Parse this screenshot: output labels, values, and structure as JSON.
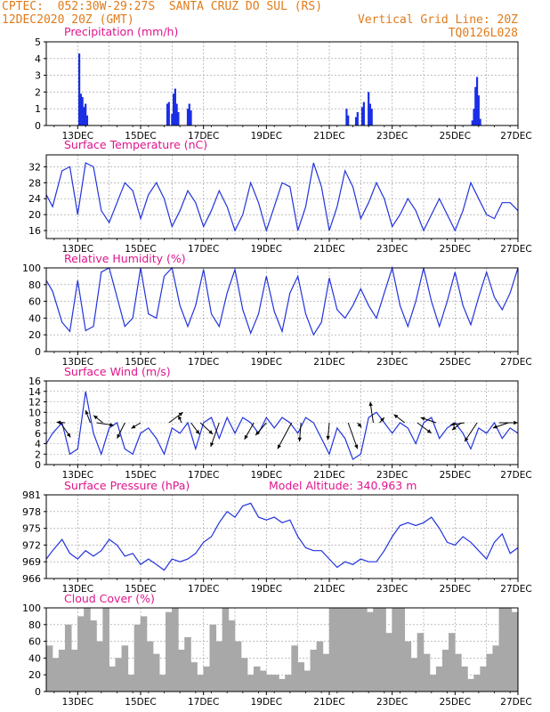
{
  "header": {
    "line1": "CPTEC:  052:30W-29:27S  SANTA CRUZ DO SUL (RS)",
    "line2_left": "12DEC2020 20Z (GMT)",
    "line2_right": "Vertical Grid Line: 20Z",
    "line3_right": "TQ0126L028"
  },
  "colors": {
    "header": "#e07b1a",
    "panel_title": "#e0148c",
    "line": "#2233dd",
    "bar": "#1a2ee6",
    "cloud": "#a8a8a8",
    "grid": "#999999"
  },
  "x_ticks": [
    "13DEC",
    "15DEC",
    "17DEC",
    "19DEC",
    "21DEC",
    "23DEC",
    "25DEC",
    "27DEC"
  ],
  "chart_data": [
    {
      "type": "bar",
      "title": "Precipitation  (mm/h)",
      "ylim": [
        0,
        5
      ],
      "yticks": [
        "0",
        "1",
        "2",
        "3",
        "4",
        "5"
      ],
      "x": [
        13.05,
        13.1,
        13.15,
        13.2,
        13.25,
        13.3,
        15.85,
        15.9,
        16.0,
        16.05,
        16.1,
        16.15,
        16.2,
        16.5,
        16.55,
        16.6,
        21.55,
        21.6,
        21.85,
        21.9,
        22.05,
        22.1,
        22.25,
        22.3,
        22.35,
        25.55,
        25.6,
        25.65,
        25.7,
        25.75,
        25.8
      ],
      "values": [
        4.3,
        1.9,
        1.7,
        1.1,
        1.3,
        0.6,
        1.3,
        1.4,
        0.7,
        1.9,
        2.2,
        1.3,
        0.8,
        1.0,
        1.3,
        0.9,
        1.0,
        0.6,
        0.5,
        0.8,
        1.1,
        1.4,
        2.0,
        1.3,
        1.0,
        0.3,
        1.0,
        2.3,
        2.9,
        1.8,
        0.4
      ]
    },
    {
      "type": "line",
      "title": "Surface Temperature  (nC)",
      "ylim": [
        14,
        35
      ],
      "yticks": [
        "16",
        "20",
        "24",
        "28",
        "32"
      ],
      "x": [
        12.0,
        12.2,
        12.5,
        12.75,
        13.0,
        13.25,
        13.5,
        13.75,
        14.0,
        14.25,
        14.5,
        14.75,
        15.0,
        15.25,
        15.5,
        15.75,
        16.0,
        16.25,
        16.5,
        16.75,
        17.0,
        17.25,
        17.5,
        17.75,
        18.0,
        18.25,
        18.5,
        18.75,
        19.0,
        19.25,
        19.5,
        19.75,
        20.0,
        20.25,
        20.5,
        20.75,
        21.0,
        21.25,
        21.5,
        21.75,
        22.0,
        22.25,
        22.5,
        22.75,
        23.0,
        23.25,
        23.5,
        23.75,
        24.0,
        24.25,
        24.5,
        24.75,
        25.0,
        25.25,
        25.5,
        25.75,
        26.0,
        26.25,
        26.5,
        26.75,
        27.0
      ],
      "values": [
        25,
        22,
        31,
        32,
        20,
        33,
        32,
        21,
        18,
        23,
        28,
        26,
        19,
        25,
        28,
        24,
        17,
        21,
        26,
        23,
        17,
        21,
        26,
        22,
        16,
        20,
        28,
        23,
        16,
        22,
        28,
        27,
        16,
        22,
        33,
        27,
        16,
        22,
        31,
        27,
        19,
        23,
        28,
        24,
        17,
        20,
        24,
        21,
        16,
        20,
        24,
        20,
        16,
        21,
        28,
        24,
        20,
        19,
        23,
        23,
        21
      ]
    },
    {
      "type": "line",
      "title": "Relative Humidity  (%)",
      "ylim": [
        0,
        100
      ],
      "yticks": [
        "0",
        "20",
        "40",
        "60",
        "80",
        "100"
      ],
      "x": [
        12.0,
        12.2,
        12.5,
        12.75,
        13.0,
        13.25,
        13.5,
        13.75,
        14.0,
        14.25,
        14.5,
        14.75,
        15.0,
        15.25,
        15.5,
        15.75,
        16.0,
        16.25,
        16.5,
        16.75,
        17.0,
        17.25,
        17.5,
        17.75,
        18.0,
        18.25,
        18.5,
        18.75,
        19.0,
        19.25,
        19.5,
        19.75,
        20.0,
        20.25,
        20.5,
        20.75,
        21.0,
        21.25,
        21.5,
        21.75,
        22.0,
        22.25,
        22.5,
        22.75,
        23.0,
        23.25,
        23.5,
        23.75,
        24.0,
        24.25,
        24.5,
        24.75,
        25.0,
        25.25,
        25.5,
        25.75,
        26.0,
        26.25,
        26.5,
        26.75,
        27.0
      ],
      "values": [
        85,
        72,
        35,
        24,
        85,
        25,
        30,
        95,
        100,
        65,
        30,
        40,
        100,
        45,
        40,
        90,
        100,
        55,
        30,
        55,
        98,
        45,
        30,
        70,
        98,
        50,
        22,
        45,
        90,
        48,
        24,
        70,
        90,
        45,
        20,
        35,
        88,
        50,
        40,
        55,
        75,
        55,
        40,
        70,
        100,
        55,
        30,
        60,
        100,
        60,
        30,
        60,
        95,
        55,
        32,
        65,
        95,
        65,
        50,
        70,
        100
      ]
    },
    {
      "type": "line",
      "title": "Surface Wind  (m/s)",
      "ylim": [
        0,
        16
      ],
      "yticks": [
        "0",
        "2",
        "4",
        "6",
        "8",
        "10",
        "12",
        "14",
        "16"
      ],
      "x": [
        12.0,
        12.2,
        12.5,
        12.75,
        13.0,
        13.25,
        13.5,
        13.75,
        14.0,
        14.25,
        14.5,
        14.75,
        15.0,
        15.25,
        15.5,
        15.75,
        16.0,
        16.25,
        16.5,
        16.75,
        17.0,
        17.25,
        17.5,
        17.75,
        18.0,
        18.25,
        18.5,
        18.75,
        19.0,
        19.25,
        19.5,
        19.75,
        20.0,
        20.25,
        20.5,
        20.75,
        21.0,
        21.25,
        21.5,
        21.75,
        22.0,
        22.25,
        22.5,
        22.75,
        23.0,
        23.25,
        23.5,
        23.75,
        24.0,
        24.25,
        24.5,
        24.75,
        25.0,
        25.25,
        25.5,
        25.75,
        26.0,
        26.25,
        26.5,
        26.75,
        27.0
      ],
      "values": [
        4,
        6,
        8,
        2,
        3,
        14,
        6,
        2,
        7,
        8,
        3,
        2,
        6,
        7,
        5,
        2,
        7,
        6,
        8,
        3,
        8,
        9,
        5,
        9,
        6,
        9,
        8,
        6,
        9,
        7,
        9,
        8,
        6,
        9,
        8,
        5,
        2,
        7,
        5,
        1,
        2,
        9,
        10,
        8,
        6,
        8,
        7,
        4,
        8,
        9,
        5,
        7,
        8,
        6,
        3,
        7,
        6,
        8,
        5,
        7,
        6
      ],
      "arrows": [
        {
          "x": 12.45,
          "dx": 0.65,
          "dy": -2.8
        },
        {
          "x": 12.6,
          "dx": -0.55,
          "dy": 0.1
        },
        {
          "x": 13.4,
          "dx": -0.3,
          "dy": 2.4
        },
        {
          "x": 13.6,
          "dx": 1.1,
          "dy": -0.5
        },
        {
          "x": 13.8,
          "dx": -0.6,
          "dy": 1.4
        },
        {
          "x": 14.5,
          "dx": -0.5,
          "dy": -3.0
        },
        {
          "x": 15.0,
          "dx": -0.6,
          "dy": -1.1
        },
        {
          "x": 15.9,
          "dx": 0.9,
          "dy": 2.0
        },
        {
          "x": 16.3,
          "dx": -0.2,
          "dy": 1.4
        },
        {
          "x": 16.6,
          "dx": 0.55,
          "dy": -2.2
        },
        {
          "x": 16.9,
          "dx": 0.8,
          "dy": -2.2
        },
        {
          "x": 17.5,
          "dx": -0.55,
          "dy": -4.6
        },
        {
          "x": 18.6,
          "dx": -0.6,
          "dy": -3.2
        },
        {
          "x": 19.0,
          "dx": -0.7,
          "dy": -2.4
        },
        {
          "x": 19.8,
          "dx": -0.9,
          "dy": -5.0
        },
        {
          "x": 20.1,
          "dx": -0.1,
          "dy": -3.6
        },
        {
          "x": 21.0,
          "dx": -0.1,
          "dy": -3.3
        },
        {
          "x": 21.6,
          "dx": 0.6,
          "dy": -5.0
        },
        {
          "x": 21.9,
          "dx": 0.25,
          "dy": -0.9
        },
        {
          "x": 22.4,
          "dx": -0.2,
          "dy": 4.0
        },
        {
          "x": 22.6,
          "dx": 0.3,
          "dy": 1.0
        },
        {
          "x": 23.4,
          "dx": -0.7,
          "dy": 1.6
        },
        {
          "x": 23.8,
          "dx": 0.9,
          "dy": -2.0
        },
        {
          "x": 24.4,
          "dx": -1.0,
          "dy": 1.0
        },
        {
          "x": 25.2,
          "dx": -0.6,
          "dy": -1.4
        },
        {
          "x": 25.3,
          "dx": -0.9,
          "dy": -0.4
        },
        {
          "x": 25.7,
          "dx": -0.8,
          "dy": -3.6
        },
        {
          "x": 26.4,
          "dx": 1.2,
          "dy": 0.0
        },
        {
          "x": 26.7,
          "dx": -1.0,
          "dy": -1.0
        }
      ]
    },
    {
      "type": "line",
      "title": "Surface Pressure  (hPa)",
      "annotation": "Model Altitude: 340.963  m",
      "ylim": [
        966,
        981
      ],
      "yticks": [
        "966",
        "969",
        "972",
        "975",
        "978",
        "981"
      ],
      "x": [
        12.0,
        12.2,
        12.5,
        12.75,
        13.0,
        13.25,
        13.5,
        13.75,
        14.0,
        14.25,
        14.5,
        14.75,
        15.0,
        15.25,
        15.5,
        15.75,
        16.0,
        16.25,
        16.5,
        16.75,
        17.0,
        17.25,
        17.5,
        17.75,
        18.0,
        18.25,
        18.5,
        18.75,
        19.0,
        19.25,
        19.5,
        19.75,
        20.0,
        20.25,
        20.5,
        20.75,
        21.0,
        21.25,
        21.5,
        21.75,
        22.0,
        22.25,
        22.5,
        22.75,
        23.0,
        23.25,
        23.5,
        23.75,
        24.0,
        24.25,
        24.5,
        24.75,
        25.0,
        25.25,
        25.5,
        25.75,
        26.0,
        26.25,
        26.5,
        26.75,
        27.0
      ],
      "values": [
        969.5,
        971,
        973,
        970.5,
        969.5,
        971,
        970,
        971,
        973,
        972,
        970,
        970.5,
        968.5,
        969.5,
        968.5,
        967.5,
        969.5,
        969,
        969.5,
        970.5,
        972.5,
        973.5,
        976,
        978,
        977,
        979,
        979.5,
        977,
        976.5,
        977,
        976,
        976.5,
        973.5,
        971.5,
        971,
        971,
        969.5,
        968,
        969,
        968.5,
        969.5,
        969,
        969,
        971,
        973.5,
        975.5,
        976,
        975.5,
        976,
        977,
        975,
        972.5,
        972,
        973.5,
        972.5,
        971,
        969.5,
        972.5,
        974,
        970.5,
        971.5
      ]
    },
    {
      "type": "bar",
      "title": "Cloud Cover  (%)",
      "ylim": [
        0,
        100
      ],
      "yticks": [
        "0",
        "20",
        "40",
        "60",
        "80",
        "100"
      ],
      "x": [
        12.1,
        12.3,
        12.5,
        12.7,
        12.9,
        13.1,
        13.3,
        13.5,
        13.7,
        13.9,
        14.1,
        14.3,
        14.5,
        14.7,
        14.9,
        15.1,
        15.3,
        15.5,
        15.7,
        15.9,
        16.1,
        16.3,
        16.5,
        16.7,
        16.9,
        17.1,
        17.3,
        17.5,
        17.7,
        17.9,
        18.1,
        18.3,
        18.5,
        18.7,
        18.9,
        19.1,
        19.3,
        19.5,
        19.7,
        19.9,
        20.1,
        20.3,
        20.5,
        20.7,
        20.9,
        21.1,
        21.3,
        21.5,
        21.7,
        21.9,
        22.1,
        22.3,
        22.5,
        22.7,
        22.9,
        23.1,
        23.3,
        23.5,
        23.7,
        23.9,
        24.1,
        24.3,
        24.5,
        24.7,
        24.9,
        25.1,
        25.3,
        25.5,
        25.7,
        25.9,
        26.1,
        26.3,
        26.5,
        26.7,
        26.9
      ],
      "values": [
        55,
        40,
        50,
        80,
        50,
        90,
        100,
        85,
        60,
        100,
        30,
        40,
        55,
        20,
        80,
        90,
        60,
        45,
        20,
        95,
        100,
        50,
        65,
        35,
        20,
        30,
        80,
        60,
        100,
        85,
        60,
        40,
        20,
        30,
        25,
        20,
        20,
        15,
        20,
        55,
        35,
        25,
        50,
        60,
        45,
        100,
        100,
        100,
        100,
        100,
        100,
        95,
        100,
        100,
        70,
        100,
        100,
        60,
        40,
        70,
        45,
        20,
        30,
        50,
        70,
        45,
        30,
        15,
        20,
        30,
        45,
        55,
        100,
        100,
        95
      ]
    }
  ]
}
